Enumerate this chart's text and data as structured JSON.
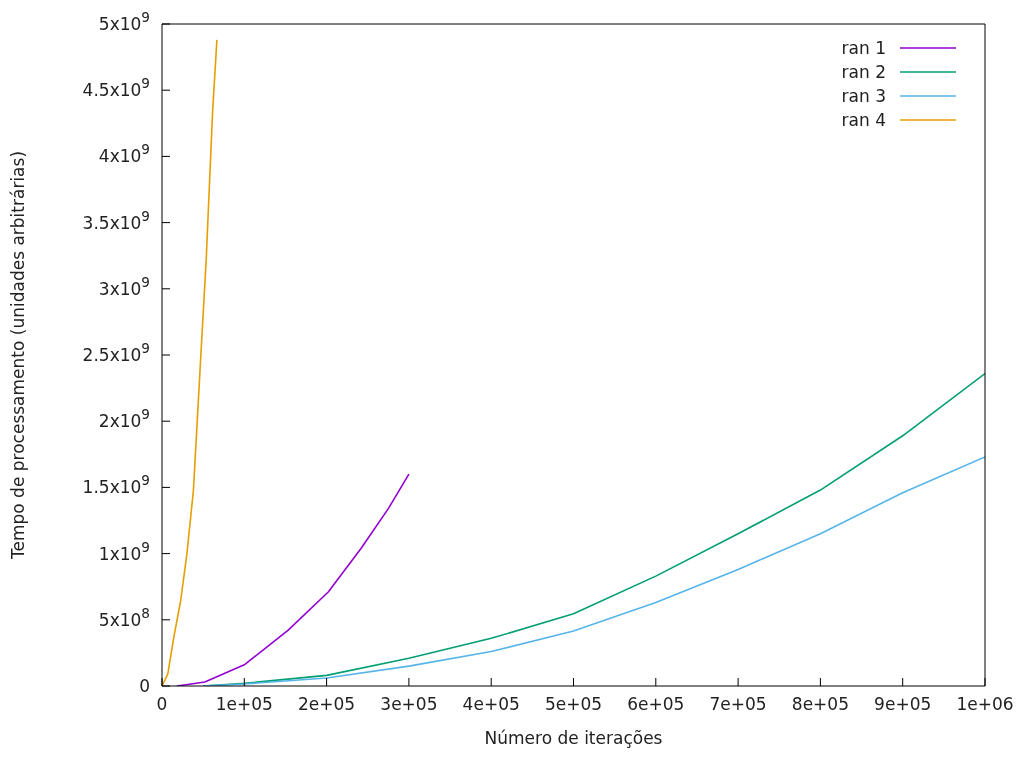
{
  "chart_data": {
    "type": "line",
    "xlabel": "Número de iterações",
    "ylabel": "Tempo de processamento (unidades arbitrárias)",
    "xlim": [
      0,
      1000000
    ],
    "ylim": [
      0,
      5000000000
    ],
    "xticks": [
      0,
      {
        "value": 100000,
        "label": "1e+05"
      },
      {
        "value": 200000,
        "label": "2e+05"
      },
      {
        "value": 300000,
        "label": "3e+05"
      },
      {
        "value": 400000,
        "label": "4e+05"
      },
      {
        "value": 500000,
        "label": "5e+05"
      },
      {
        "value": 600000,
        "label": "6e+05"
      },
      {
        "value": 700000,
        "label": "7e+05"
      },
      {
        "value": 800000,
        "label": "8e+05"
      },
      {
        "value": 900000,
        "label": "9e+05"
      },
      {
        "value": 1000000,
        "label": "1e+06"
      }
    ],
    "yticks": [
      0,
      {
        "value": 500000000,
        "label": "5x10$^{8}$"
      },
      {
        "value": 1000000000,
        "label": "1x10$^{9}$"
      },
      {
        "value": 1500000000,
        "label": "1.5x10$^{9}$"
      },
      {
        "value": 2000000000,
        "label": "2x10$^{9}$"
      },
      {
        "value": 2500000000,
        "label": "2.5x10$^{9}$"
      },
      {
        "value": 3000000000,
        "label": "3x10$^{9}$"
      },
      {
        "value": 3500000000,
        "label": "3.5x10$^{9}$"
      },
      {
        "value": 4000000000,
        "label": "4x10$^{9}$"
      },
      {
        "value": 4500000000,
        "label": "4.5x10$^{9}$"
      },
      {
        "value": 5000000000,
        "label": "5x10$^{9}$"
      }
    ],
    "grid": false,
    "legend": "top right",
    "marker": "none",
    "line_style": "solid",
    "series": [
      {
        "name": "ran 1",
        "color": "#9400d3",
        "x": [
          18000,
          52000,
          100000,
          153000,
          202000,
          242000,
          275000,
          300000
        ],
        "values": [
          0,
          30000000,
          160000000,
          420000000,
          710000000,
          1040000000,
          1340000000,
          1600000000
        ]
      },
      {
        "name": "ran 2",
        "color": "#009e73",
        "x": [
          50000,
          100000,
          200000,
          300000,
          400000,
          500000,
          600000,
          700000,
          800000,
          900000,
          1000000
        ],
        "values": [
          0,
          20000000,
          80000000,
          210000000,
          360000000,
          545000000,
          830000000,
          1150000000,
          1480000000,
          1890000000,
          2360000000
        ]
      },
      {
        "name": "ran 3",
        "color": "#56b4e9",
        "x": [
          50000,
          100000,
          200000,
          300000,
          400000,
          500000,
          600000,
          700000,
          800000,
          900000,
          1000000
        ],
        "values": [
          0,
          15000000,
          60000000,
          150000000,
          260000000,
          415000000,
          630000000,
          880000000,
          1150000000,
          1460000000,
          1730000000
        ]
      },
      {
        "name": "ran 4",
        "color": "#e69f00",
        "x": [
          0,
          7000,
          14800,
          22600,
          30300,
          38200,
          47300,
          53700,
          61500,
          66700
        ],
        "values": [
          0,
          90000000,
          385000000,
          640000000,
          1000000000,
          1480000000,
          2510000000,
          3220000000,
          4340000000,
          4880000000
        ]
      }
    ]
  }
}
